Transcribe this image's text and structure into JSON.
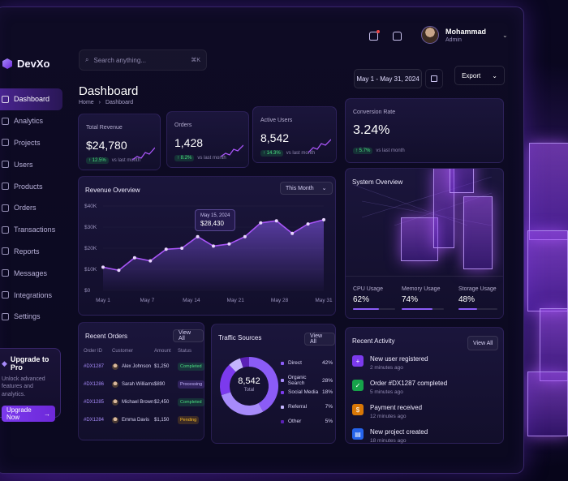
{
  "app": {
    "name": "DevXo"
  },
  "colors": {
    "accent": "#8b5cf6",
    "positive": "#4ade80",
    "warning": "#fbbf24",
    "background": "#0b0920"
  },
  "sidebar": {
    "items": [
      {
        "label": "Dashboard",
        "icon": "home-icon",
        "active": true
      },
      {
        "label": "Analytics",
        "icon": "chart-icon"
      },
      {
        "label": "Projects",
        "icon": "folder-icon"
      },
      {
        "label": "Users",
        "icon": "users-icon"
      },
      {
        "label": "Products",
        "icon": "box-icon"
      },
      {
        "label": "Orders",
        "icon": "cart-icon"
      },
      {
        "label": "Transactions",
        "icon": "transactions-icon"
      },
      {
        "label": "Reports",
        "icon": "report-icon"
      },
      {
        "label": "Messages",
        "icon": "message-icon"
      },
      {
        "label": "Integrations",
        "icon": "puzzle-icon"
      },
      {
        "label": "Settings",
        "icon": "gear-icon"
      }
    ],
    "upgrade": {
      "title": "Upgrade to Pro",
      "text": "Unlock advanced features and analytics.",
      "button": "Upgrade Now"
    }
  },
  "header": {
    "search_placeholder": "Search anything...",
    "search_shortcut": "⌘K",
    "user": {
      "name": "Mohammad",
      "role": "Admin"
    },
    "title": "Dashboard",
    "breadcrumb": [
      "Home",
      "Dashboard"
    ],
    "date_range": "May 1 - May 31, 2024",
    "export_label": "Export"
  },
  "kpis": [
    {
      "label": "Total Revenue",
      "value": "$24,780",
      "delta": "↑ 12.5%",
      "note": "vs last month"
    },
    {
      "label": "Orders",
      "value": "1,428",
      "delta": "↑ 8.2%",
      "note": "vs last month"
    },
    {
      "label": "Active Users",
      "value": "8,542",
      "delta": "↑ 14.3%",
      "note": "vs last month"
    },
    {
      "label": "Conversion Rate",
      "value": "3.24%",
      "delta": "↑ 5.7%",
      "note": "vs last month"
    }
  ],
  "revenue": {
    "title": "Revenue Overview",
    "range_label": "This Month",
    "tooltip": {
      "date": "May 15, 2024",
      "value": "$28,430"
    }
  },
  "chart_data": {
    "type": "area",
    "title": "Revenue Overview",
    "x": [
      "May 1",
      "May 3",
      "May 5",
      "May 7",
      "May 9",
      "May 11",
      "May 14",
      "May 16",
      "May 18",
      "May 21",
      "May 23",
      "May 25",
      "May 28",
      "May 30",
      "May 31"
    ],
    "x_ticks": [
      "May 1",
      "May 7",
      "May 14",
      "May 21",
      "May 28",
      "May 31"
    ],
    "values": [
      11000,
      9500,
      15500,
      14000,
      19500,
      20000,
      25500,
      21000,
      22000,
      25500,
      32000,
      33000,
      27000,
      31500,
      33500
    ],
    "y_ticks": [
      "$0",
      "$10K",
      "$20K",
      "$30K",
      "$40K"
    ],
    "ylim": [
      0,
      40000
    ],
    "series_color": "#a855f7"
  },
  "recent_orders": {
    "title": "Recent Orders",
    "view_all": "View All",
    "columns": [
      "Order ID",
      "Customer",
      "Amount",
      "Status"
    ],
    "rows": [
      {
        "id": "#DX1287",
        "customer": "Alex Johnson",
        "amount": "$1,250",
        "status": "Completed",
        "status_class": "completed"
      },
      {
        "id": "#DX1286",
        "customer": "Sarah Williams",
        "amount": "$890",
        "status": "Processing",
        "status_class": "processing"
      },
      {
        "id": "#DX1285",
        "customer": "Michael Brown",
        "amount": "$2,450",
        "status": "Completed",
        "status_class": "completed"
      },
      {
        "id": "#DX1284",
        "customer": "Emma Davis",
        "amount": "$1,150",
        "status": "Pending",
        "status_class": "pending"
      }
    ]
  },
  "traffic": {
    "title": "Traffic Sources",
    "view_all": "View All",
    "total": "8,542",
    "total_label": "Total",
    "sources": [
      {
        "name": "Direct",
        "pct": "42%",
        "value": 42,
        "color": "#8b5cf6"
      },
      {
        "name": "Organic Search",
        "pct": "28%",
        "value": 28,
        "color": "#a78bfa"
      },
      {
        "name": "Social Media",
        "pct": "18%",
        "value": 18,
        "color": "#7c3aed"
      },
      {
        "name": "Referral",
        "pct": "7%",
        "value": 7,
        "color": "#c4b5fd"
      },
      {
        "name": "Other",
        "pct": "5%",
        "value": 5,
        "color": "#5b21b6"
      }
    ]
  },
  "system": {
    "title": "System Overview",
    "metrics": [
      {
        "label": "CPU Usage",
        "value": "62%",
        "level": 0.62
      },
      {
        "label": "Memory Usage",
        "value": "74%",
        "level": 0.74
      },
      {
        "label": "Storage Usage",
        "value": "48%",
        "level": 0.48
      }
    ]
  },
  "activity": {
    "title": "Recent Activity",
    "view_all": "View All",
    "items": [
      {
        "title": "New user registered",
        "time": "2 minutes ago",
        "icon": "user-plus-icon",
        "color": "#7c3aed"
      },
      {
        "title": "Order #DX1287 completed",
        "time": "5 minutes ago",
        "icon": "check-icon",
        "color": "#16a34a"
      },
      {
        "title": "Payment received",
        "time": "12 minutes ago",
        "icon": "wallet-icon",
        "color": "#d97706"
      },
      {
        "title": "New project created",
        "time": "18 minutes ago",
        "icon": "folder-icon",
        "color": "#2563eb"
      }
    ]
  }
}
